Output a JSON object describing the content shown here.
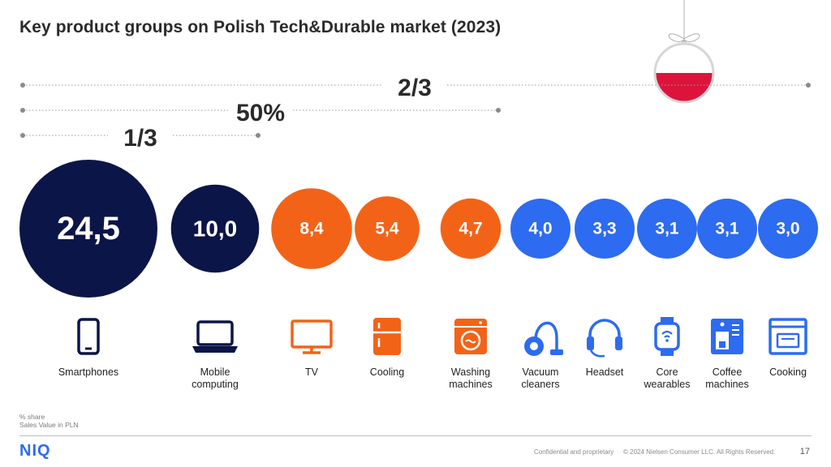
{
  "title": "Key product groups on Polish Tech&Durable market (2023)",
  "chart_data": {
    "type": "bubble",
    "title": "Key product groups on Polish Tech&Durable market (2023)",
    "unit": "% share",
    "measure": "Sales Value in PLN",
    "categories": [
      "Smartphones",
      "Mobile\ncomputing",
      "TV",
      "Cooling",
      "Washing\nmachines",
      "Vacuum\ncleaners",
      "Headset",
      "Core\nwearables",
      "Coffee\nmachines",
      "Cooking"
    ],
    "values": [
      24.5,
      10.0,
      8.4,
      5.4,
      4.7,
      4.0,
      3.3,
      3.1,
      3.1,
      3.0
    ],
    "value_labels": [
      "24,5",
      "10,0",
      "8,4",
      "5,4",
      "4,7",
      "4,0",
      "3,3",
      "3,1",
      "3,1",
      "3,0"
    ],
    "icons": [
      "smartphone-icon",
      "laptop-icon",
      "tv-icon",
      "fridge-icon",
      "washing-machine-icon",
      "vacuum-cleaner-icon",
      "headset-icon",
      "smartwatch-icon",
      "coffee-machine-icon",
      "oven-icon"
    ],
    "colors": [
      "#0b1547",
      "#0b1547",
      "#f26318",
      "#f26318",
      "#f26318",
      "#2d6bf0",
      "#2d6bf0",
      "#2d6bf0",
      "#2d6bf0",
      "#2d6bf0"
    ],
    "brackets": [
      {
        "label": "1/3",
        "from_index": 0,
        "to_index": 0
      },
      {
        "label": "50%",
        "from_index": 0,
        "to_index": 2
      },
      {
        "label": "2/3",
        "from_index": 0,
        "to_index": 9
      }
    ]
  },
  "notes": [
    "% share",
    "Sales Value in PLN"
  ],
  "footer": {
    "logo": "NIQ",
    "confidential": "Confidential and proprietary",
    "copyright": "© 2024 Nielsen Consumer LLC. All Rights Reserved.",
    "page": "17"
  },
  "flag_colors": {
    "top": "#ffffff",
    "bottom": "#dc143c"
  }
}
